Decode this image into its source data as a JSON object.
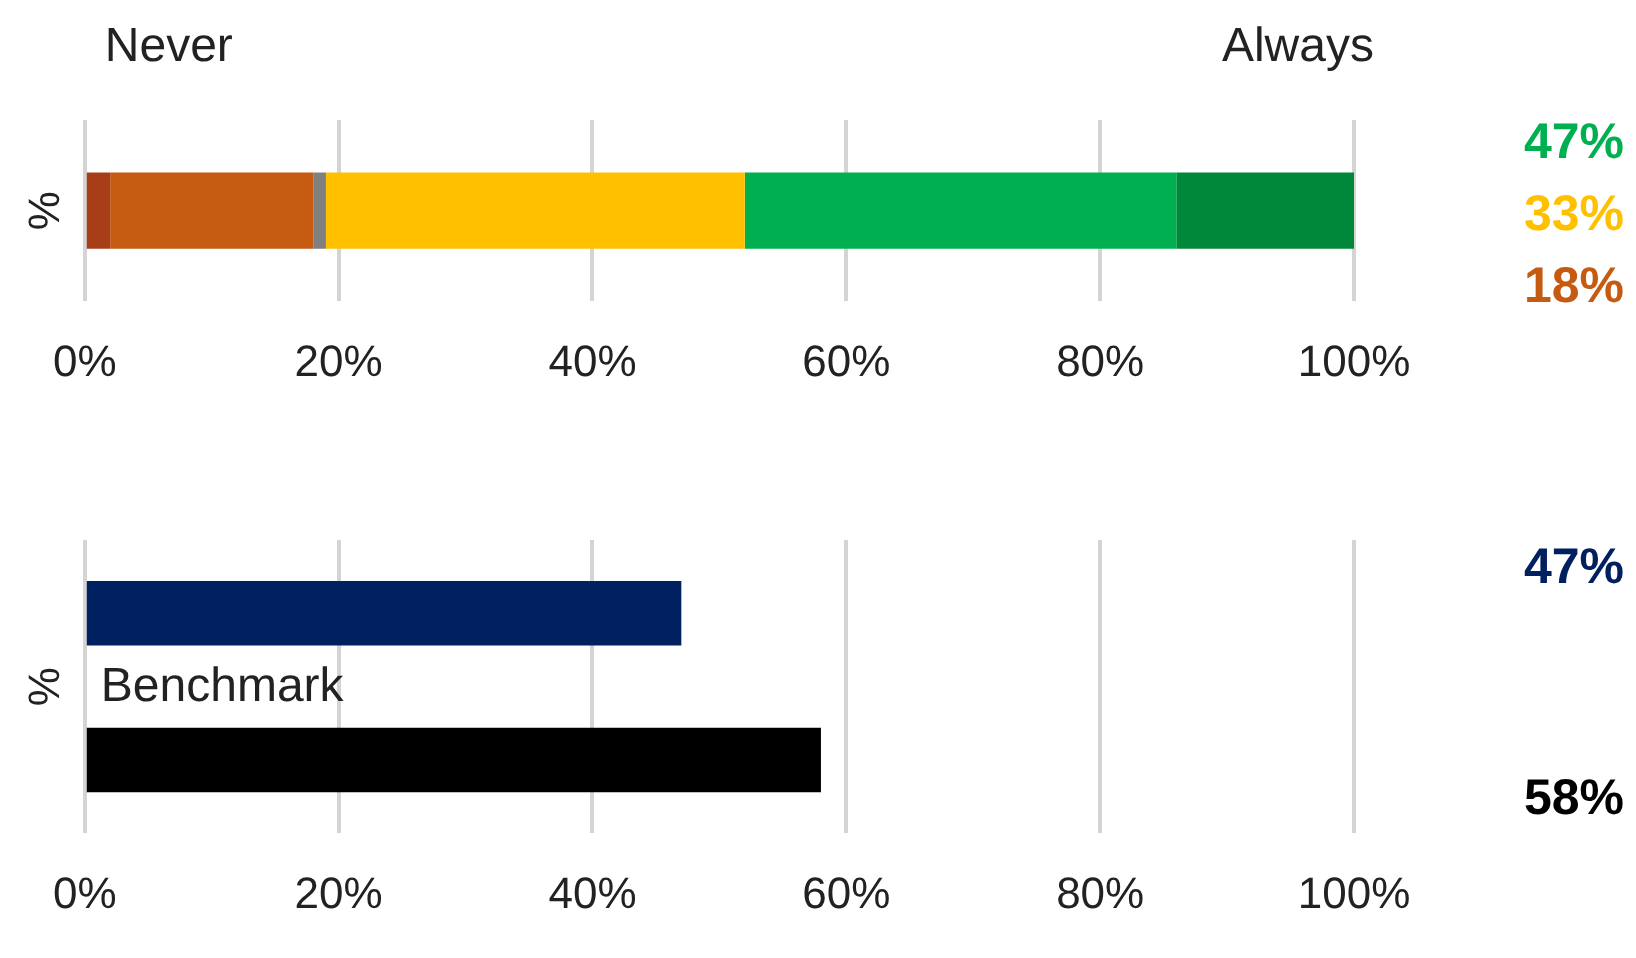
{
  "chart_data": [
    {
      "type": "bar",
      "orientation": "horizontal",
      "stacked": true,
      "categories": [
        null
      ],
      "ylabel": "%",
      "annotations": [
        "Never",
        "Always",
        "47%",
        "33%",
        "18%"
      ],
      "legend": false,
      "grid": "x",
      "tick_labels": "x",
      "xlim": [
        0,
        100
      ],
      "xticks": [
        {
          "value": 0,
          "label": "0%"
        },
        {
          "value": 20,
          "label": "20%"
        },
        {
          "value": 40,
          "label": "40%"
        },
        {
          "value": 60,
          "label": "60%"
        },
        {
          "value": 80,
          "label": "80%"
        },
        {
          "value": 100,
          "label": "100%"
        }
      ],
      "series": [
        {
          "color": "#a83e18",
          "values": [
            2
          ]
        },
        {
          "color": "#c55a11",
          "values": [
            16
          ]
        },
        {
          "color": "#808080",
          "values": [
            1
          ]
        },
        {
          "color": "#ffc000",
          "values": [
            33
          ]
        },
        {
          "color": "#00b050",
          "values": [
            34
          ]
        },
        {
          "color": "#00883a",
          "values": [
            14
          ]
        }
      ]
    },
    {
      "type": "bar",
      "orientation": "horizontal",
      "categories": [
        null,
        null
      ],
      "annotations": [
        "Benchmark"
      ],
      "ylabel": "%",
      "legend": false,
      "grid": "x",
      "tick_labels": "x",
      "xlim": [
        0,
        100
      ],
      "xticks": [
        {
          "value": 0,
          "label": "0%"
        },
        {
          "value": 20,
          "label": "20%"
        },
        {
          "value": 40,
          "label": "40%"
        },
        {
          "value": 60,
          "label": "60%"
        },
        {
          "value": 80,
          "label": "80%"
        },
        {
          "value": 100,
          "label": "100%"
        }
      ],
      "values": [
        47,
        58
      ],
      "colors": [
        "#002060",
        "#000000"
      ],
      "value_labels": [
        "47%",
        "58%"
      ]
    }
  ]
}
